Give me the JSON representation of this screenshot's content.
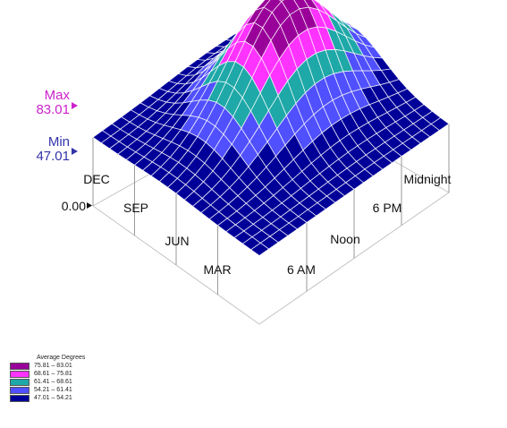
{
  "chart_data": {
    "type": "surface3d",
    "title": "",
    "z_min_label": "Min",
    "z_min_value": "47.01",
    "z_max_label": "Max",
    "z_max_value": "83.01",
    "z_zero_label": "0.00",
    "z_range": [
      47.01,
      83.01
    ],
    "x_axis_ticks": [
      "6 AM",
      "Noon",
      "6 PM",
      "Midnight"
    ],
    "y_axis_ticks": [
      "MAR",
      "JUN",
      "SEP",
      "DEC"
    ],
    "legend": {
      "title": "Average Degrees",
      "placement": "bottom-left",
      "bands": [
        {
          "label": "75.81 – 83.01",
          "color": "#990099"
        },
        {
          "label": "68.61 – 75.81",
          "color": "#ff33ff"
        },
        {
          "label": "61.41 – 68.61",
          "color": "#1fa8a8"
        },
        {
          "label": "54.21 – 61.41",
          "color": "#5050ff"
        },
        {
          "label": "47.01 – 54.21",
          "color": "#000099"
        }
      ]
    }
  }
}
